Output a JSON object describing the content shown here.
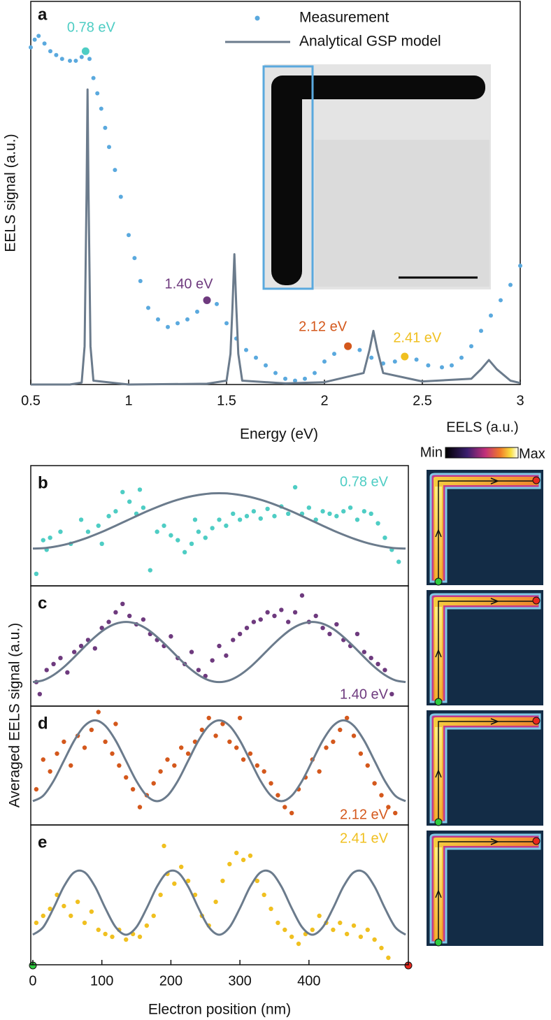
{
  "chart_data": [
    {
      "type": "scatter",
      "panel": "a",
      "xlabel": "Energy (eV)",
      "ylabel": "EELS signal (a.u.)",
      "xlim": [
        0.5,
        3
      ],
      "xticks": [
        0.5,
        1,
        1.5,
        2,
        2.5,
        3
      ],
      "ylim": [
        0,
        1
      ],
      "series": [
        {
          "name": "Measurement",
          "type": "scatter",
          "color": "#5aa9de",
          "x": [
            0.5,
            0.52,
            0.54,
            0.57,
            0.6,
            0.63,
            0.66,
            0.7,
            0.73,
            0.76,
            0.78,
            0.8,
            0.82,
            0.84,
            0.86,
            0.88,
            0.9,
            0.93,
            0.96,
            1.0,
            1.03,
            1.06,
            1.1,
            1.15,
            1.2,
            1.25,
            1.3,
            1.35,
            1.4,
            1.45,
            1.5,
            1.55,
            1.6,
            1.65,
            1.7,
            1.75,
            1.8,
            1.85,
            1.9,
            1.95,
            2.0,
            2.05,
            2.12,
            2.18,
            2.24,
            2.3,
            2.36,
            2.41,
            2.47,
            2.53,
            2.6,
            2.65,
            2.7,
            2.75,
            2.8,
            2.85,
            2.9,
            2.95,
            3.0
          ],
          "values": [
            0.88,
            0.9,
            0.91,
            0.89,
            0.87,
            0.86,
            0.85,
            0.845,
            0.845,
            0.855,
            0.87,
            0.85,
            0.8,
            0.76,
            0.72,
            0.67,
            0.62,
            0.56,
            0.49,
            0.39,
            0.33,
            0.27,
            0.2,
            0.17,
            0.15,
            0.16,
            0.17,
            0.19,
            0.22,
            0.21,
            0.16,
            0.12,
            0.09,
            0.07,
            0.05,
            0.03,
            0.015,
            0.01,
            0.015,
            0.03,
            0.06,
            0.08,
            0.1,
            0.09,
            0.07,
            0.055,
            0.06,
            0.073,
            0.065,
            0.05,
            0.045,
            0.05,
            0.07,
            0.1,
            0.14,
            0.18,
            0.22,
            0.26,
            0.31
          ]
        },
        {
          "name": "Analytical GSP model",
          "type": "line",
          "color": "#6b7b8c",
          "x": [
            0.5,
            0.7,
            0.76,
            0.775,
            0.785,
            0.79,
            0.795,
            0.805,
            0.82,
            1.0,
            1.4,
            1.5,
            1.52,
            1.53,
            1.54,
            1.55,
            1.56,
            1.58,
            1.8,
            2.0,
            2.2,
            2.23,
            2.25,
            2.27,
            2.3,
            2.5,
            2.75,
            2.8,
            2.84,
            2.88,
            2.95,
            3.0
          ],
          "values": [
            0,
            0,
            0.005,
            0.1,
            0.5,
            0.77,
            0.5,
            0.1,
            0.01,
            0,
            0.002,
            0.01,
            0.08,
            0.2,
            0.34,
            0.2,
            0.08,
            0.01,
            0.003,
            0.006,
            0.03,
            0.09,
            0.14,
            0.09,
            0.03,
            0.008,
            0.015,
            0.04,
            0.064,
            0.04,
            0.01,
            0.004
          ]
        }
      ],
      "annotations": [
        {
          "text": "0.78 eV",
          "x": 0.78,
          "y": 0.87,
          "color": "#4ecdc4"
        },
        {
          "text": "1.40 eV",
          "x": 1.4,
          "y": 0.22,
          "color": "#6e3a7e"
        },
        {
          "text": "2.12 eV",
          "x": 2.12,
          "y": 0.1,
          "color": "#d4581c"
        },
        {
          "text": "2.41 eV",
          "x": 2.41,
          "y": 0.073,
          "color": "#f0c020"
        }
      ]
    },
    {
      "type": "scatter",
      "panel": "b",
      "annotation": "0.78 eV",
      "xlim": [
        -3,
        544
      ],
      "ylim": [
        0,
        1
      ],
      "series": [
        {
          "type": "scatter",
          "color": "#4ecdc4",
          "x": [
            5,
            15,
            20,
            25,
            40,
            55,
            70,
            80,
            95,
            100,
            110,
            120,
            130,
            140,
            150,
            155,
            160,
            170,
            180,
            190,
            200,
            210,
            220,
            230,
            235,
            240,
            250,
            260,
            270,
            280,
            290,
            300,
            310,
            320,
            330,
            340,
            350,
            360,
            370,
            380,
            390,
            400,
            410,
            420,
            430,
            440,
            450,
            460,
            470,
            480,
            490,
            500,
            510,
            520,
            530
          ],
          "values": [
            0.1,
            0.38,
            0.3,
            0.4,
            0.45,
            0.35,
            0.55,
            0.45,
            0.5,
            0.35,
            0.58,
            0.62,
            0.78,
            0.7,
            0.6,
            0.8,
            0.65,
            0.13,
            0.45,
            0.5,
            0.42,
            0.38,
            0.28,
            0.35,
            0.55,
            0.45,
            0.4,
            0.48,
            0.55,
            0.5,
            0.6,
            0.55,
            0.58,
            0.62,
            0.56,
            0.64,
            0.58,
            0.66,
            0.6,
            0.82,
            0.6,
            0.65,
            0.55,
            0.62,
            0.6,
            0.58,
            0.62,
            0.65,
            0.55,
            0.62,
            0.6,
            0.52,
            0.4,
            0.3,
            0.2
          ]
        },
        {
          "type": "line",
          "color": "#6b7b8c",
          "x": [
            0,
            15,
            30,
            45,
            60,
            75,
            90,
            105,
            120,
            135,
            150,
            165,
            180,
            195,
            210,
            225,
            240,
            255,
            270,
            285,
            300,
            315,
            330,
            345,
            360,
            375,
            390,
            405,
            420,
            435,
            450,
            465,
            480,
            495,
            510,
            525,
            540
          ],
          "values": [
            0.31,
            0.313,
            0.324,
            0.341,
            0.364,
            0.392,
            0.425,
            0.461,
            0.5,
            0.54,
            0.58,
            0.619,
            0.655,
            0.688,
            0.716,
            0.739,
            0.756,
            0.767,
            0.77,
            0.767,
            0.756,
            0.739,
            0.716,
            0.688,
            0.655,
            0.619,
            0.58,
            0.54,
            0.5,
            0.461,
            0.425,
            0.392,
            0.364,
            0.341,
            0.324,
            0.313,
            0.31
          ]
        }
      ]
    },
    {
      "type": "scatter",
      "panel": "c",
      "annotation": "1.40 eV",
      "xlim": [
        -3,
        544
      ],
      "ylim": [
        0,
        1
      ],
      "series": [
        {
          "type": "scatter",
          "color": "#6e3a7e",
          "x": [
            5,
            10,
            20,
            30,
            40,
            50,
            60,
            70,
            80,
            90,
            100,
            110,
            120,
            130,
            140,
            150,
            160,
            170,
            180,
            190,
            200,
            210,
            220,
            230,
            240,
            250,
            260,
            270,
            280,
            290,
            300,
            310,
            320,
            330,
            340,
            350,
            360,
            370,
            380,
            390,
            400,
            410,
            420,
            430,
            440,
            450,
            460,
            470,
            480,
            490,
            500,
            510,
            520
          ],
          "values": [
            0.2,
            0.1,
            0.3,
            0.35,
            0.4,
            0.28,
            0.45,
            0.5,
            0.55,
            0.48,
            0.65,
            0.7,
            0.78,
            0.85,
            0.75,
            0.68,
            0.72,
            0.6,
            0.55,
            0.5,
            0.58,
            0.4,
            0.35,
            0.45,
            0.3,
            0.25,
            0.38,
            0.5,
            0.42,
            0.55,
            0.6,
            0.65,
            0.7,
            0.72,
            0.78,
            0.75,
            0.8,
            0.7,
            0.78,
            0.92,
            0.7,
            0.75,
            0.65,
            0.6,
            0.68,
            0.55,
            0.5,
            0.6,
            0.45,
            0.4,
            0.35,
            0.3,
            0.1
          ]
        },
        {
          "type": "line",
          "color": "#6b7b8c",
          "x": [
            0,
            15,
            30,
            45,
            60,
            75,
            90,
            105,
            120,
            135,
            150,
            165,
            180,
            195,
            210,
            225,
            240,
            255,
            270,
            285,
            300,
            315,
            330,
            345,
            360,
            375,
            390,
            405,
            420,
            435,
            450,
            465,
            480,
            495,
            510,
            525,
            540
          ],
          "values": [
            0.2,
            0.215,
            0.259,
            0.325,
            0.407,
            0.494,
            0.575,
            0.642,
            0.685,
            0.7,
            0.685,
            0.642,
            0.575,
            0.494,
            0.407,
            0.325,
            0.259,
            0.215,
            0.2,
            0.215,
            0.259,
            0.325,
            0.407,
            0.494,
            0.575,
            0.642,
            0.685,
            0.7,
            0.685,
            0.642,
            0.575,
            0.494,
            0.407,
            0.325,
            0.259,
            0.215,
            0.2
          ]
        }
      ]
    },
    {
      "type": "scatter",
      "panel": "d",
      "annotation": "2.12 eV",
      "xlim": [
        -3,
        544
      ],
      "ylim": [
        0,
        1
      ],
      "series": [
        {
          "type": "scatter",
          "color": "#d4581c",
          "x": [
            5,
            15,
            25,
            35,
            45,
            55,
            65,
            75,
            85,
            95,
            105,
            115,
            125,
            135,
            145,
            155,
            165,
            175,
            185,
            195,
            205,
            215,
            225,
            235,
            245,
            255,
            265,
            275,
            285,
            295,
            305,
            315,
            325,
            335,
            345,
            355,
            365,
            375,
            385,
            395,
            405,
            415,
            425,
            435,
            445,
            455,
            465,
            475,
            485,
            495,
            505,
            515,
            525,
            120,
            300
          ],
          "values": [
            0.3,
            0.55,
            0.45,
            0.6,
            0.7,
            0.5,
            0.75,
            0.65,
            0.8,
            0.95,
            0.7,
            0.6,
            0.5,
            0.4,
            0.3,
            0.15,
            0.25,
            0.35,
            0.45,
            0.55,
            0.5,
            0.65,
            0.6,
            0.7,
            0.8,
            0.9,
            0.75,
            0.85,
            0.7,
            0.65,
            0.55,
            0.6,
            0.5,
            0.45,
            0.35,
            0.25,
            0.15,
            0.1,
            0.3,
            0.4,
            0.55,
            0.45,
            0.65,
            0.7,
            0.8,
            0.9,
            0.75,
            0.6,
            0.5,
            0.35,
            0.25,
            0.15,
            0.1,
            0.85,
            0.9
          ]
        },
        {
          "type": "line",
          "color": "#6b7b8c",
          "x": [
            0,
            15,
            30,
            45,
            60,
            75,
            90,
            105,
            120,
            135,
            150,
            165,
            180,
            195,
            210,
            225,
            240,
            255,
            270,
            285,
            300,
            315,
            330,
            345,
            360,
            375,
            390,
            405,
            420,
            435,
            450,
            465,
            480,
            495,
            510,
            525,
            540
          ],
          "values": [
            0.2,
            0.246,
            0.37,
            0.54,
            0.71,
            0.834,
            0.88,
            0.834,
            0.71,
            0.54,
            0.37,
            0.246,
            0.2,
            0.246,
            0.37,
            0.54,
            0.71,
            0.834,
            0.88,
            0.834,
            0.71,
            0.54,
            0.37,
            0.246,
            0.2,
            0.246,
            0.37,
            0.54,
            0.71,
            0.834,
            0.88,
            0.834,
            0.71,
            0.54,
            0.37,
            0.246,
            0.2
          ]
        }
      ]
    },
    {
      "type": "scatter",
      "panel": "e",
      "annotation": "2.41 eV",
      "xlabel": "Electron position (nm)",
      "xlim": [
        -3,
        544
      ],
      "xticks": [
        0,
        100,
        200,
        300,
        400
      ],
      "ylim": [
        0,
        1
      ],
      "series": [
        {
          "type": "scatter",
          "color": "#f0c020",
          "x": [
            5,
            15,
            25,
            35,
            45,
            55,
            65,
            75,
            85,
            95,
            105,
            115,
            125,
            135,
            145,
            155,
            165,
            175,
            185,
            195,
            205,
            215,
            225,
            235,
            245,
            255,
            265,
            275,
            285,
            295,
            305,
            315,
            325,
            335,
            345,
            355,
            365,
            375,
            385,
            395,
            405,
            415,
            425,
            435,
            445,
            455,
            465,
            475,
            485,
            495,
            505,
            515,
            190
          ],
          "values": [
            0.3,
            0.35,
            0.4,
            0.5,
            0.42,
            0.35,
            0.45,
            0.3,
            0.38,
            0.25,
            0.22,
            0.2,
            0.25,
            0.18,
            0.22,
            0.2,
            0.28,
            0.35,
            0.5,
            0.65,
            0.58,
            0.7,
            0.6,
            0.5,
            0.35,
            0.28,
            0.45,
            0.6,
            0.72,
            0.8,
            0.75,
            0.78,
            0.6,
            0.5,
            0.4,
            0.3,
            0.25,
            0.2,
            0.15,
            0.22,
            0.25,
            0.35,
            0.3,
            0.25,
            0.3,
            0.22,
            0.28,
            0.2,
            0.25,
            0.18,
            0.12,
            0.05,
            0.85
          ]
        },
        {
          "type": "line",
          "color": "#6b7b8c",
          "x": [
            0,
            15,
            30,
            45,
            60,
            75,
            90,
            105,
            120,
            135,
            150,
            165,
            180,
            195,
            210,
            225,
            240,
            255,
            270,
            285,
            300,
            315,
            330,
            345,
            360,
            375,
            390,
            405,
            420,
            435,
            450,
            465,
            480,
            495,
            510,
            525,
            540
          ],
          "values": [
            0.215,
            0.269,
            0.405,
            0.56,
            0.661,
            0.661,
            0.56,
            0.405,
            0.269,
            0.215,
            0.269,
            0.405,
            0.56,
            0.661,
            0.661,
            0.56,
            0.405,
            0.269,
            0.215,
            0.269,
            0.405,
            0.56,
            0.661,
            0.661,
            0.56,
            0.405,
            0.269,
            0.215,
            0.269,
            0.405,
            0.56,
            0.661,
            0.661,
            0.56,
            0.405,
            0.269,
            0.215
          ]
        }
      ]
    }
  ],
  "shared_ylabel": "Averaged EELS signal (a.u.)",
  "colorbar": {
    "title": "EELS (a.u.)",
    "min_label": "Min",
    "max_label": "Max"
  }
}
